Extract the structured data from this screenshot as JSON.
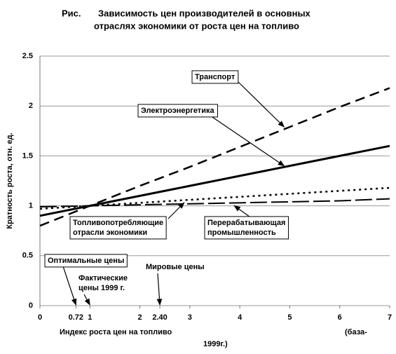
{
  "chart_data": {
    "type": "line",
    "title_label": "Рис.",
    "title": [
      "Зависимость цен производителей в основных",
      "отраслях экономики от роста цен на топливо"
    ],
    "x_label": "Индекс роста цен на топливо",
    "x_label_note": [
      "(база-",
      "1999г.)"
    ],
    "y_label": "Кратность роста, отн. ед.",
    "x": [
      0,
      1,
      2,
      3,
      4,
      5,
      6,
      7
    ],
    "series": [
      {
        "name": [
          "Транспорт"
        ],
        "color": "#000000",
        "style": "dashed",
        "values": [
          0.8,
          1.0,
          1.2,
          1.39,
          1.59,
          1.79,
          1.99,
          2.18
        ]
      },
      {
        "name": [
          "Электроэнергетика"
        ],
        "color": "#000000",
        "style": "solid",
        "values": [
          0.9,
          1.0,
          1.1,
          1.2,
          1.3,
          1.4,
          1.5,
          1.6
        ]
      },
      {
        "name": [
          "Топливопотребляющие",
          "отрасли экономики"
        ],
        "color": "#000000",
        "style": "dotted",
        "values": [
          0.97,
          1.0,
          1.03,
          1.06,
          1.09,
          1.12,
          1.15,
          1.18
        ]
      },
      {
        "name": [
          "Перерабатывающая",
          "промышленность"
        ],
        "color": "#000000",
        "style": "longdash",
        "values": [
          0.99,
          1.0,
          1.01,
          1.02,
          1.03,
          1.04,
          1.05,
          1.07
        ]
      }
    ],
    "annotations": [
      {
        "text": [
          "Оптимальные цены"
        ],
        "x": 0.72
      },
      {
        "text": [
          "Фактические",
          "цены 1999 г."
        ],
        "x": 1
      },
      {
        "text": [
          "Мировые цены"
        ],
        "x": 2.4
      }
    ],
    "xlim": [
      0,
      7
    ],
    "xticks": [
      0,
      0.72,
      1,
      2,
      {
        "value": 2.4,
        "label": "2.40"
      },
      3,
      4,
      5,
      6,
      7
    ],
    "ylim": [
      0,
      2.5
    ],
    "yticks": [
      0,
      0.5,
      1,
      1.5,
      2,
      2.5
    ],
    "grid": true
  }
}
